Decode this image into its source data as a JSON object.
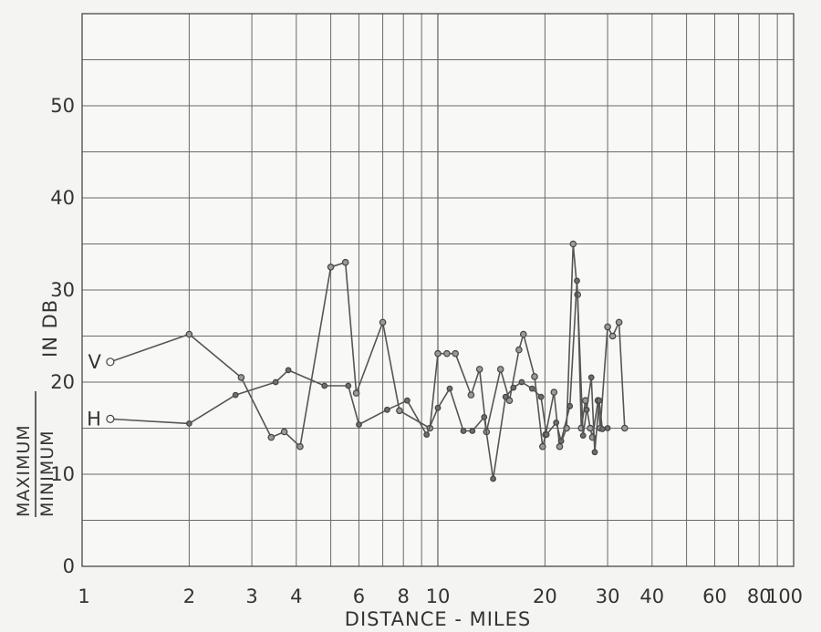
{
  "chart_data": {
    "type": "line",
    "xscale": "log",
    "xlim": [
      1,
      100
    ],
    "ylim": [
      0,
      60
    ],
    "grid": true,
    "xlabel": "DISTANCE - MILES",
    "ylabel": {
      "numerator": "MAXIMUM",
      "denominator": "MINIMUM",
      "unit": "IN DB"
    },
    "xticks": [
      1,
      2,
      3,
      4,
      6,
      8,
      10,
      20,
      30,
      40,
      60,
      80,
      100
    ],
    "xtick_labels": [
      "1",
      "2",
      "3",
      "4",
      "6",
      "8",
      "10",
      "20",
      "30",
      "40",
      "60",
      "80",
      "100"
    ],
    "yticks": [
      0,
      10,
      20,
      30,
      40,
      50
    ],
    "ytick_labels": [
      "0",
      "10",
      "20",
      "30",
      "40",
      "50"
    ],
    "series": [
      {
        "name": "V",
        "color": "#555555",
        "x": [
          1.2,
          2.0,
          2.8,
          3.4,
          3.7,
          4.1,
          5.0,
          5.5,
          5.9,
          7.0,
          7.8,
          9.5,
          10.0,
          10.6,
          11.2,
          12.4,
          13.1,
          13.7,
          15.0,
          15.9,
          16.9,
          17.4,
          18.7,
          19.7,
          20.1,
          21.2,
          22.0,
          23.0,
          24.0,
          24.7,
          25.3,
          26.0,
          26.8,
          27.2,
          28.2,
          28.6,
          30.0,
          31.0,
          32.3,
          33.5
        ],
        "y": [
          22.2,
          25.2,
          20.5,
          14.0,
          14.6,
          13.0,
          32.5,
          33.0,
          18.8,
          26.5,
          16.9,
          15.0,
          23.1,
          23.1,
          23.1,
          18.6,
          21.4,
          14.6,
          21.4,
          18.0,
          23.5,
          25.2,
          20.6,
          13.0,
          14.3,
          18.9,
          13.0,
          15.0,
          35.0,
          29.5,
          15.0,
          18.0,
          15.0,
          14.0,
          18.0,
          15.0,
          26.0,
          25.0,
          26.5,
          15.0
        ]
      },
      {
        "name": "H",
        "color": "#555555",
        "x": [
          1.2,
          2.0,
          2.7,
          3.5,
          3.8,
          4.8,
          5.6,
          6.0,
          7.2,
          8.2,
          9.3,
          10.0,
          10.8,
          11.8,
          12.5,
          13.5,
          14.3,
          15.5,
          16.3,
          17.2,
          18.4,
          19.5,
          20.2,
          21.5,
          22.2,
          23.5,
          24.6,
          25.6,
          26.2,
          27.0,
          27.6,
          28.4,
          29.0,
          30.0
        ],
        "y": [
          16.0,
          15.5,
          18.6,
          20.0,
          21.3,
          19.6,
          19.6,
          15.4,
          17.0,
          18.0,
          14.3,
          17.2,
          19.3,
          14.7,
          14.7,
          16.2,
          9.5,
          18.4,
          19.4,
          20.0,
          19.3,
          18.4,
          14.3,
          15.6,
          13.6,
          17.4,
          31.0,
          14.2,
          17.0,
          20.5,
          12.4,
          18.0,
          14.9,
          15.0
        ]
      }
    ]
  }
}
